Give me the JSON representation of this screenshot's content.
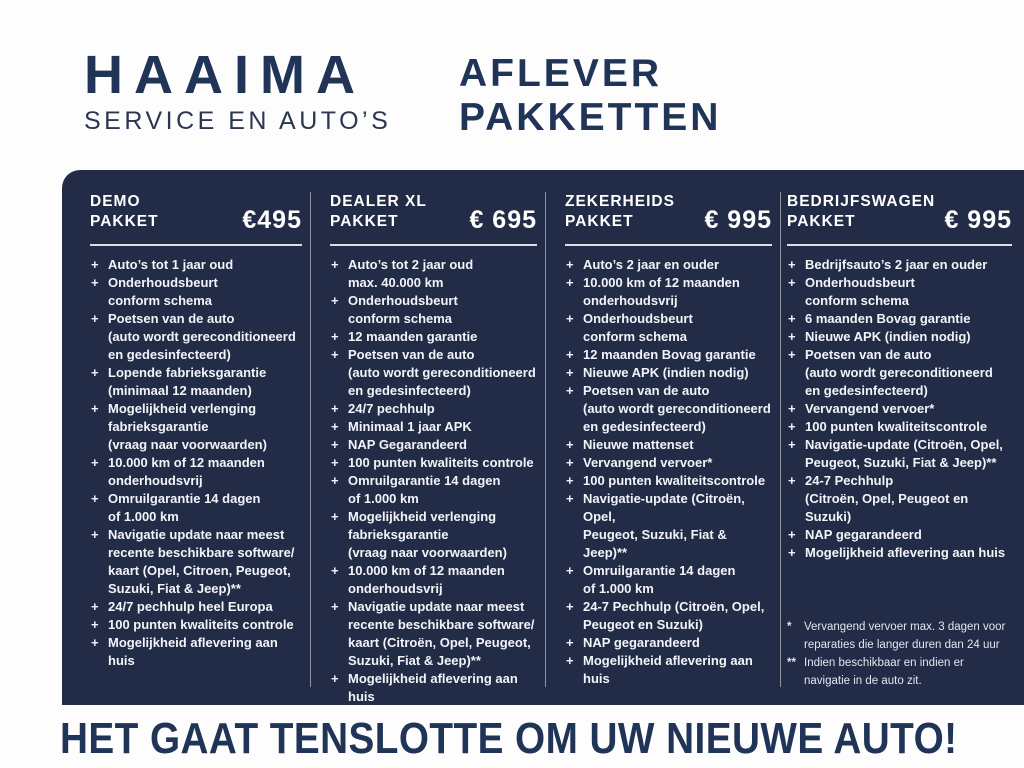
{
  "colors": {
    "brand_navy": "#203457",
    "panel_bg": "#222c46",
    "panel_text": "#f2f4f9"
  },
  "logo": {
    "name": "HAAIMA",
    "subtitle": "SERVICE EN AUTO’S"
  },
  "headline": {
    "line1": "AFLEVER",
    "line2": "PAKKETTEN"
  },
  "packages": [
    {
      "title_lines": [
        "DEMO",
        "PAKKET"
      ],
      "price": "€495",
      "items": [
        [
          "Auto’s tot 1 jaar oud"
        ],
        [
          "Onderhoudsbeurt",
          "conform schema"
        ],
        [
          "Poetsen van de auto",
          "(auto wordt gereconditioneerd",
          "en gedesinfecteerd)"
        ],
        [
          "Lopende fabrieksgarantie",
          "(minimaal 12 maanden)"
        ],
        [
          "Mogelijkheid verlenging",
          "fabrieksgarantie",
          "(vraag naar voorwaarden)"
        ],
        [
          "10.000 km of 12 maanden",
          "onderhoudsvrij"
        ],
        [
          "Omruilgarantie 14 dagen",
          "of 1.000 km"
        ],
        [
          "Navigatie update naar meest",
          "recente beschikbare software/",
          "kaart (Opel, Citroen,  Peugeot,",
          "Suzuki, Fiat & Jeep)**"
        ],
        [
          "24/7 pechhulp heel Europa"
        ],
        [
          "100 punten kwaliteits controle"
        ],
        [
          "Mogelijkheid aflevering aan huis"
        ]
      ],
      "footnotes": []
    },
    {
      "title_lines": [
        "DEALER XL",
        "PAKKET"
      ],
      "price": "€ 695",
      "items": [
        [
          "Auto’s tot 2 jaar oud",
          "max. 40.000 km"
        ],
        [
          "Onderhoudsbeurt",
          "conform schema"
        ],
        [
          "12 maanden garantie"
        ],
        [
          "Poetsen van de auto",
          "(auto wordt gereconditioneerd",
          "en gedesinfecteerd)"
        ],
        [
          "24/7 pechhulp"
        ],
        [
          "Minimaal 1 jaar APK"
        ],
        [
          "NAP Gegarandeerd"
        ],
        [
          "100 punten kwaliteits controle"
        ],
        [
          "Omruilgarantie 14 dagen",
          "of 1.000 km"
        ],
        [
          "Mogelijkheid verlenging",
          "fabrieksgarantie",
          "(vraag naar voorwaarden)"
        ],
        [
          "10.000 km of 12 maanden",
          "onderhoudsvrij"
        ],
        [
          "Navigatie update naar meest",
          "recente beschikbare software/",
          "kaart (Citroën, Opel, Peugeot,",
          "Suzuki, Fiat & Jeep)**"
        ],
        [
          "Mogelijkheid aflevering aan huis"
        ]
      ],
      "footnotes": []
    },
    {
      "title_lines": [
        "ZEKERHEIDS",
        "PAKKET"
      ],
      "price": "€ 995",
      "items": [
        [
          "Auto’s 2 jaar en ouder"
        ],
        [
          "10.000 km of 12 maanden",
          "onderhoudsvrij"
        ],
        [
          "Onderhoudsbeurt",
          "conform schema"
        ],
        [
          "12 maanden Bovag garantie"
        ],
        [
          "Nieuwe APK (indien nodig)"
        ],
        [
          "Poetsen van de auto",
          "(auto wordt gereconditioneerd",
          "en gedesinfecteerd)"
        ],
        [
          "Nieuwe mattenset"
        ],
        [
          "Vervangend vervoer*"
        ],
        [
          "100 punten kwaliteitscontrole"
        ],
        [
          "Navigatie-update (Citroën, Opel,",
          "Peugeot, Suzuki, Fiat & Jeep)**"
        ],
        [
          "Omruilgarantie 14 dagen",
          "of 1.000 km"
        ],
        [
          "24-7 Pechhulp (Citroën, Opel,",
          "Peugeot en Suzuki)"
        ],
        [
          "NAP gegarandeerd"
        ],
        [
          "Mogelijkheid aflevering aan huis"
        ]
      ],
      "footnotes": []
    },
    {
      "title_lines": [
        "BEDRIJFSWAGEN",
        "PAKKET"
      ],
      "price": "€ 995",
      "items": [
        [
          "Bedrijfsauto’s 2 jaar en ouder"
        ],
        [
          "Onderhoudsbeurt",
          "conform schema"
        ],
        [
          "6 maanden Bovag garantie"
        ],
        [
          "Nieuwe APK (indien nodig)"
        ],
        [
          "Poetsen van de auto",
          "(auto wordt gereconditioneerd",
          "en gedesinfecteerd)"
        ],
        [
          "Vervangend vervoer*"
        ],
        [
          "100 punten kwaliteitscontrole"
        ],
        [
          "Navigatie-update (Citroën, Opel,",
          "Peugeot, Suzuki, Fiat & Jeep)**"
        ],
        [
          "24-7 Pechhulp",
          "(Citroën, Opel, Peugeot en Suzuki)"
        ],
        [
          "NAP gegarandeerd"
        ],
        [
          "Mogelijkheid aflevering aan huis"
        ]
      ],
      "footnotes": [
        {
          "marker": "*",
          "lines": [
            "Vervangend vervoer max. 3 dagen voor",
            "reparaties die langer duren dan 24 uur"
          ]
        },
        {
          "marker": "**",
          "lines": [
            "Indien beschikbaar en indien er",
            "navigatie in de auto zit."
          ]
        }
      ]
    }
  ],
  "tagline": "HET GAAT TENSLOTTE OM UW NIEUWE AUTO!"
}
